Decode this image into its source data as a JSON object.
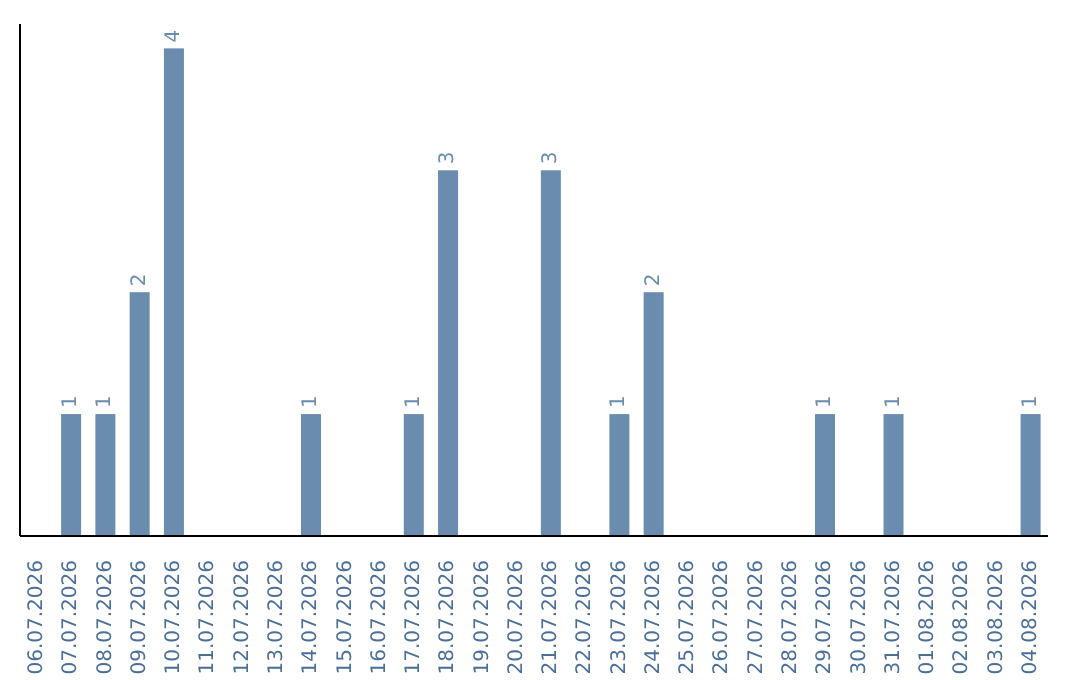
{
  "chart_data": {
    "type": "bar",
    "categories": [
      "06.07.2026",
      "07.07.2026",
      "08.07.2026",
      "09.07.2026",
      "10.07.2026",
      "11.07.2026",
      "12.07.2026",
      "13.07.2026",
      "14.07.2026",
      "15.07.2026",
      "16.07.2026",
      "17.07.2026",
      "18.07.2026",
      "19.07.2026",
      "20.07.2026",
      "21.07.2026",
      "22.07.2026",
      "23.07.2026",
      "24.07.2026",
      "25.07.2026",
      "26.07.2026",
      "27.07.2026",
      "28.07.2026",
      "29.07.2026",
      "30.07.2026",
      "31.07.2026",
      "01.08.2026",
      "02.08.2026",
      "03.08.2026",
      "04.08.2026"
    ],
    "values": [
      0,
      1,
      1,
      2,
      4,
      0,
      0,
      0,
      1,
      0,
      0,
      1,
      3,
      0,
      0,
      3,
      0,
      1,
      2,
      0,
      0,
      0,
      0,
      1,
      0,
      1,
      0,
      0,
      0,
      1
    ],
    "value_labels": [
      null,
      "1",
      "1",
      "2",
      "4",
      null,
      null,
      null,
      "1",
      null,
      null,
      "1",
      "3",
      null,
      null,
      "3",
      null,
      "1",
      "2",
      null,
      null,
      null,
      null,
      "1",
      null,
      "1",
      null,
      null,
      null,
      "1"
    ],
    "color": "#6a8caf",
    "grid": false,
    "legend": false
  }
}
